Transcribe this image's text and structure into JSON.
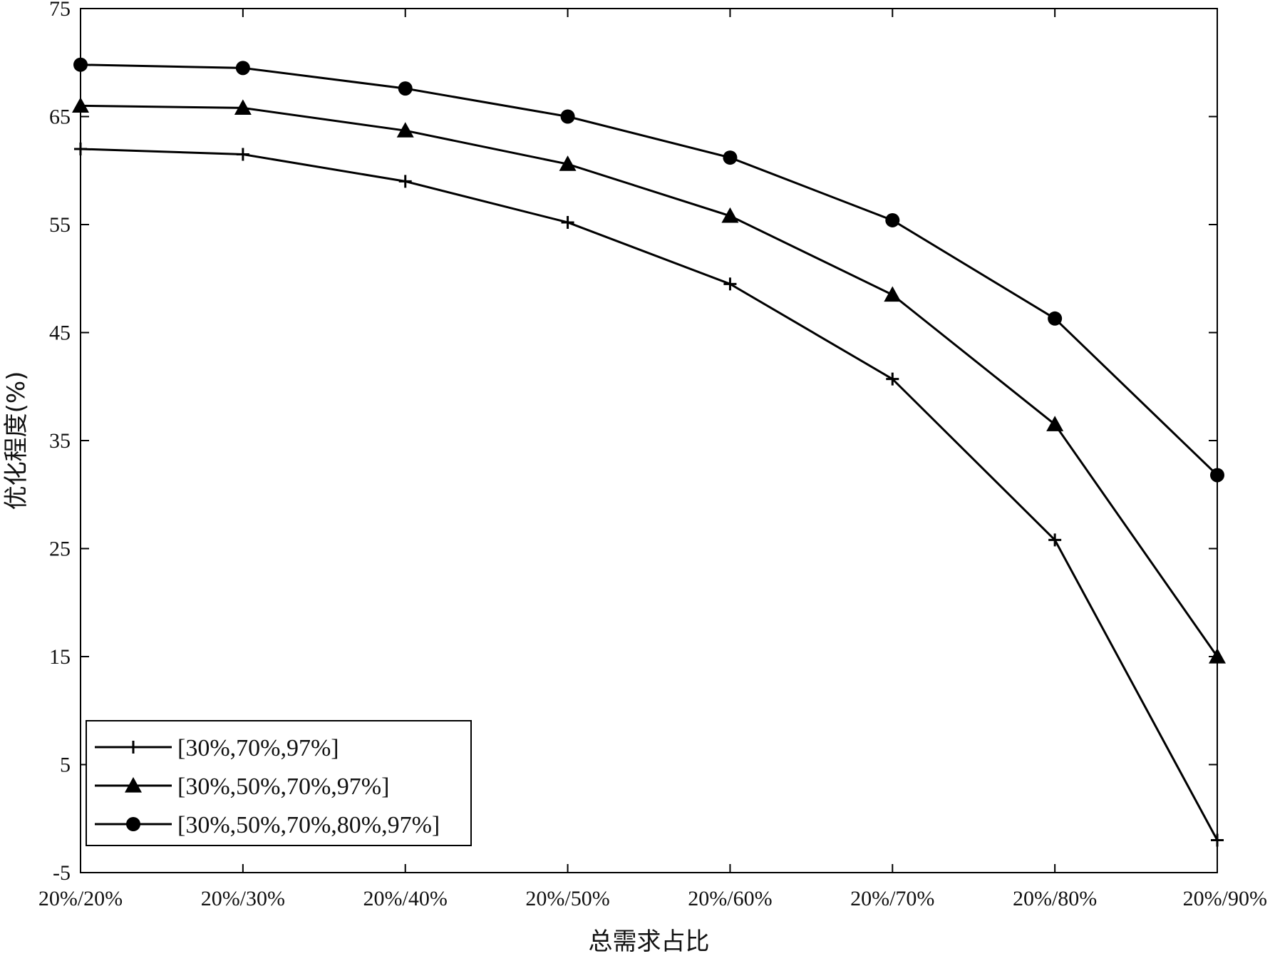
{
  "chart_data": {
    "type": "line",
    "title": "",
    "xlabel": "总需求占比",
    "ylabel": "优化程度(%)",
    "categories": [
      "20%/20%",
      "20%/30%",
      "20%/40%",
      "20%/50%",
      "20%/60%",
      "20%/70%",
      "20%/80%",
      "20%/90%"
    ],
    "ylim": [
      -5,
      75
    ],
    "yticks": [
      "-5",
      "5",
      "15",
      "25",
      "35",
      "45",
      "55",
      "65",
      "75"
    ],
    "grid": false,
    "legend_position": "bottom-left",
    "series": [
      {
        "name": "[30%,70%,97%]",
        "marker": "plus",
        "values": [
          62.0,
          61.5,
          59.0,
          55.2,
          49.5,
          40.7,
          25.8,
          -2.0
        ]
      },
      {
        "name": "[30%,50%,70%,97%]",
        "marker": "triangle",
        "values": [
          66.0,
          65.8,
          63.7,
          60.6,
          55.8,
          48.5,
          36.5,
          15.0
        ]
      },
      {
        "name": "[30%,50%,70%,80%,97%]",
        "marker": "circle",
        "values": [
          69.8,
          69.5,
          67.6,
          65.0,
          61.2,
          55.4,
          46.3,
          31.8
        ]
      }
    ],
    "colors": {
      "line": "#000000",
      "axis": "#000000",
      "background": "#ffffff"
    }
  }
}
